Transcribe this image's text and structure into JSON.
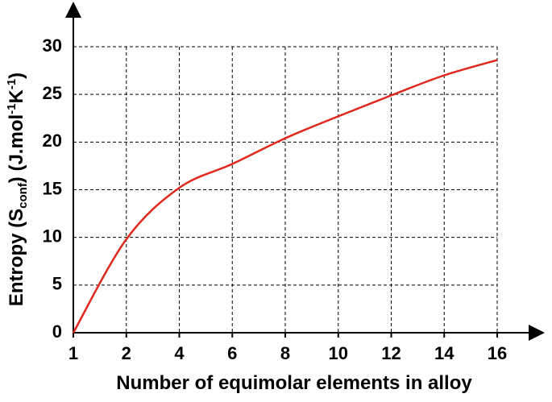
{
  "chart_data": {
    "type": "line",
    "xlabel": "Number of equimolar elements in alloy",
    "ylabel_parts": [
      "Entropy (S",
      "conf",
      ") (J.mol",
      "-1",
      "K",
      "-1",
      ")"
    ],
    "categories": [
      "1",
      "2",
      "4",
      "6",
      "8",
      "10",
      "12",
      "14",
      "16"
    ],
    "series": [
      {
        "color": "#e0281e",
        "values": [
          0,
          9.8,
          15.2,
          17.7,
          20.4,
          22.7,
          24.9,
          27,
          28.6
        ]
      }
    ],
    "ylim": [
      0,
      30
    ],
    "yticks": [
      0,
      5,
      10,
      15,
      20,
      25,
      30
    ],
    "grid": true
  }
}
